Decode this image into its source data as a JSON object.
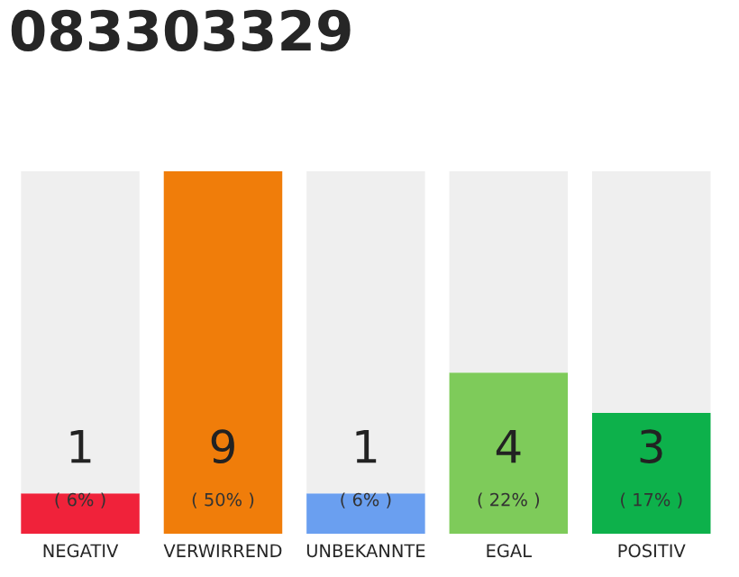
{
  "chart_data": {
    "type": "bar",
    "title": "083303329",
    "stacked": true,
    "categories": [
      "NEGATIV",
      "VERWIRREND",
      "UNBEKANNTE",
      "EGAL",
      "POSITIV"
    ],
    "series": [
      {
        "colors": [
          "#f0223a",
          "#f07d0a",
          "#6a9ff0",
          "#7ecb5a",
          "#0db14b"
        ],
        "values": [
          1,
          9,
          1,
          4,
          3
        ],
        "value_labels": [
          "1\n( 6% )",
          "9\n( 50% )",
          "1\n( 6% )",
          "4\n( 22% )",
          "3\n( 17% )"
        ]
      },
      {
        "color": "#efefef",
        "values": [
          8,
          0,
          8,
          5,
          6
        ]
      }
    ],
    "ylim": [
      0,
      9
    ],
    "tick_labels": "x",
    "grid": false,
    "legend": false
  }
}
